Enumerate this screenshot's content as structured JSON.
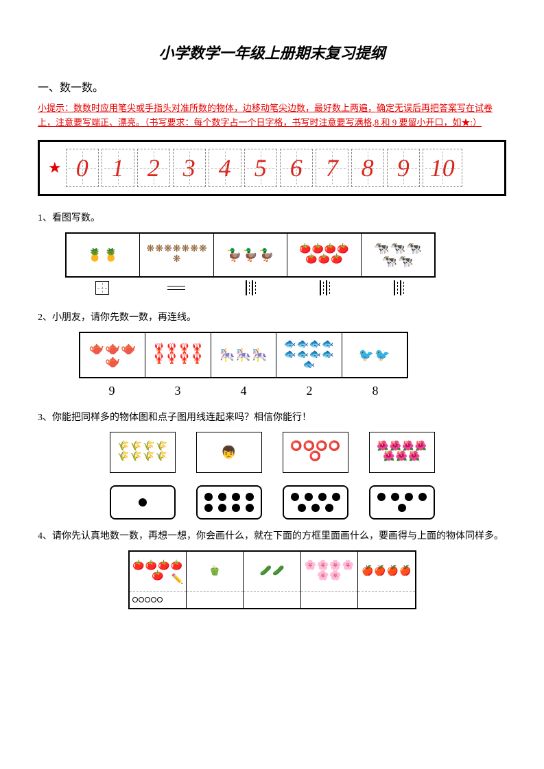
{
  "title": "小学数学一年级上册期末复习提纲",
  "section1": "一、数一数。",
  "tip": "小提示：数数时应用笔尖或手指头对准所数的物体，边移动笔尖边数，最好数上两遍，确定无误后再把答案写在试卷上，注意要写端正、漂亮。（书写要求：每个数字占一个日字格，书写时注意要写满格,8 和 9 要留小开口，如★:）",
  "digits": [
    "0",
    "1",
    "2",
    "3",
    "4",
    "5",
    "6",
    "7",
    "8",
    "9",
    "10"
  ],
  "q1": "1、看图写数。",
  "q1_items": [
    {
      "icon": "🍍",
      "count": 2
    },
    {
      "icon": "❋",
      "count": 8,
      "color": "#8b5a2b"
    },
    {
      "icon": "🦆",
      "count": 3
    },
    {
      "icon": "🍅",
      "count": 7
    },
    {
      "icon": "🐄",
      "count": 5
    }
  ],
  "q2": "2、小朋友，请你先数一数，再连线。",
  "q2_items": [
    {
      "icon": "🫖",
      "count": 4,
      "color": "#6a5acd"
    },
    {
      "icon": "🦞",
      "count": 8,
      "color": "#cd5c5c"
    },
    {
      "icon": "🎠",
      "count": 3
    },
    {
      "icon": "🐟",
      "count": 9,
      "color": "#ff6699"
    },
    {
      "icon": "🐦",
      "count": 2,
      "color": "#f4c430"
    }
  ],
  "q2_numbers": [
    "9",
    "3",
    "4",
    "2",
    "8"
  ],
  "q3": "3、你能把同样多的物体图和点子图用线连起来吗？相信你能行！",
  "q3_items": [
    {
      "icon": "🌾",
      "count": 8
    },
    {
      "icon": "👦",
      "count": 1
    },
    {
      "icon": "⭕",
      "count": 5
    },
    {
      "icon": "🌺",
      "count": 7
    }
  ],
  "q3_dots": [
    1,
    8,
    7,
    5
  ],
  "q4": "4、请你先认真地数一数，再想一想，你会画什么，就在下面的方框里面画什么，要画得与上面的物体同样多。",
  "q4_items": [
    {
      "icon": "🍅",
      "count": 5,
      "drawn": 5
    },
    {
      "icon": "🫑",
      "count": 1,
      "drawn": 0
    },
    {
      "icon": "🥒",
      "count": 2,
      "drawn": 0
    },
    {
      "icon": "🌸",
      "count": 6,
      "drawn": 0
    },
    {
      "icon": "🍎",
      "count": 4,
      "drawn": 0
    }
  ],
  "colors": {
    "red": "#e60000",
    "digit": "#d9261c",
    "black": "#000000"
  }
}
